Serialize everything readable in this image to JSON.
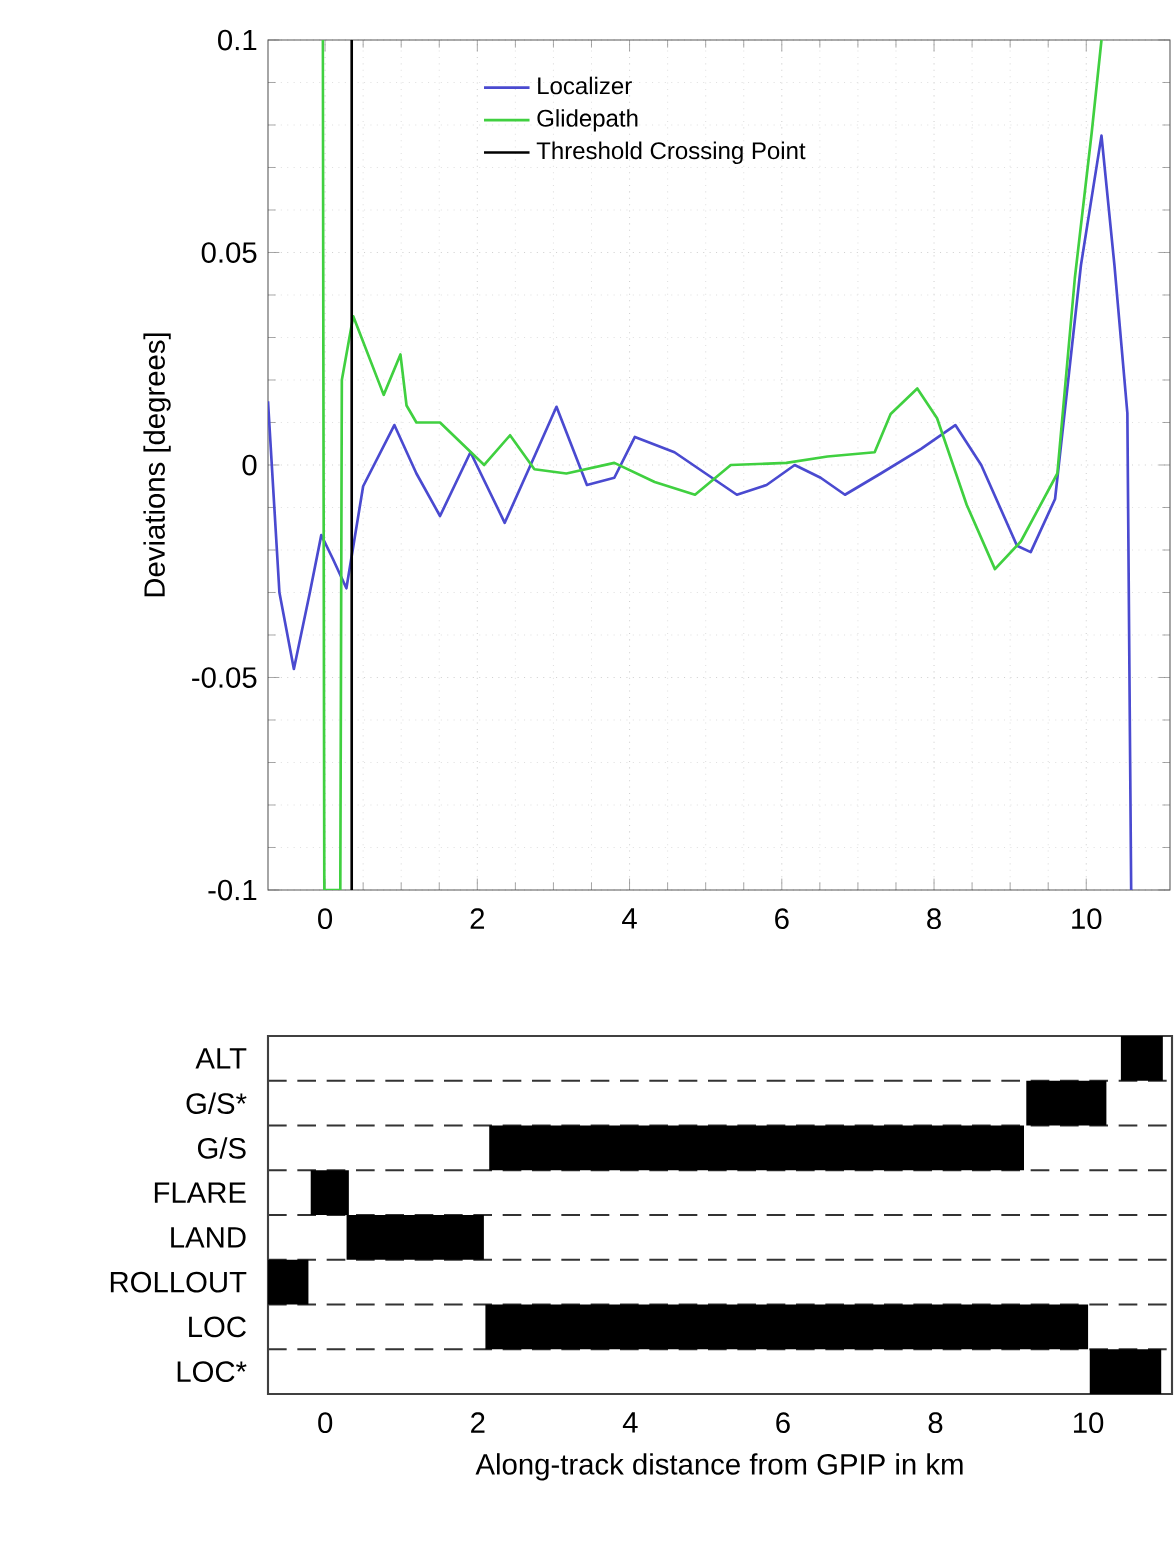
{
  "chart_data": [
    {
      "type": "line",
      "ylabel": "Deviations [degrees]",
      "xlim": [
        -0.75,
        11.1
      ],
      "ylim": [
        -0.1,
        0.1
      ],
      "xticks": [
        0,
        2,
        4,
        6,
        8,
        10
      ],
      "yticks": [
        -0.1,
        -0.05,
        0,
        0.05,
        0.1
      ],
      "grid": true,
      "legend": "top",
      "series": [
        {
          "name": "Localizer",
          "color": "#4a4ad0",
          "x": [
            -0.75,
            -0.6,
            -0.41,
            -0.2,
            -0.05,
            0.1,
            0.28,
            0.5,
            0.91,
            1.2,
            1.51,
            1.91,
            2.36,
            2.7,
            3.04,
            3.44,
            3.8,
            4.07,
            4.59,
            5.0,
            5.41,
            5.8,
            6.17,
            6.51,
            6.83,
            7.3,
            7.83,
            8.28,
            8.62,
            9.09,
            9.27,
            9.59,
            9.93,
            10.2,
            10.37,
            10.54,
            10.59
          ],
          "values": [
            0.015,
            -0.03,
            -0.048,
            -0.03,
            -0.0165,
            -0.022,
            -0.029,
            -0.005,
            0.0094,
            -0.002,
            -0.012,
            0.003,
            -0.0136,
            0.0,
            0.0137,
            -0.0047,
            -0.003,
            0.0066,
            0.003,
            -0.002,
            -0.007,
            -0.0047,
            0.0,
            -0.003,
            -0.007,
            -0.002,
            0.0038,
            0.0094,
            0.0,
            -0.019,
            -0.0205,
            -0.008,
            0.047,
            0.0775,
            0.047,
            0.0122,
            -0.1
          ]
        },
        {
          "name": "Glidepath",
          "color": "#40d040",
          "x": [
            -0.03,
            -0.01,
            0.2,
            0.22,
            0.37,
            0.77,
            0.99,
            1.07,
            1.2,
            1.51,
            2.09,
            2.43,
            2.75,
            3.17,
            3.8,
            4.33,
            4.86,
            5.33,
            6.06,
            6.6,
            7.22,
            7.43,
            7.78,
            8.04,
            8.43,
            8.8,
            9.14,
            9.62,
            9.85,
            10.07,
            10.2
          ],
          "values": [
            0.1,
            -0.1,
            -0.1,
            0.02,
            0.035,
            0.0165,
            0.026,
            0.014,
            0.01,
            0.01,
            0.0,
            0.007,
            -0.001,
            -0.002,
            0.0005,
            -0.004,
            -0.007,
            0.0,
            0.0005,
            0.002,
            0.003,
            0.012,
            0.018,
            0.011,
            -0.0094,
            -0.0245,
            -0.018,
            -0.002,
            0.044,
            0.078,
            0.1
          ]
        },
        {
          "name": "Threshold Crossing Point",
          "color": "#000000",
          "x": [
            0.35,
            0.35
          ],
          "values": [
            -0.1,
            0.1
          ]
        }
      ]
    },
    {
      "type": "bar",
      "orientation": "horizontal",
      "xlabel": "Along-track distance from GPIP in km",
      "xlim": [
        -0.75,
        11.1
      ],
      "xticks": [
        0,
        2,
        4,
        6,
        8,
        10
      ],
      "grid": "y",
      "color": "#000000",
      "categories": [
        "ALT",
        "G/S*",
        "G/S",
        "FLARE",
        "LAND",
        "ROLLOUT",
        "LOC",
        "LOC*"
      ],
      "base": [
        10.43,
        9.19,
        2.15,
        -0.19,
        0.28,
        -0.75,
        2.1,
        10.02
      ],
      "values": [
        0.55,
        1.05,
        7.01,
        0.5,
        1.8,
        0.53,
        7.9,
        0.94
      ]
    }
  ]
}
